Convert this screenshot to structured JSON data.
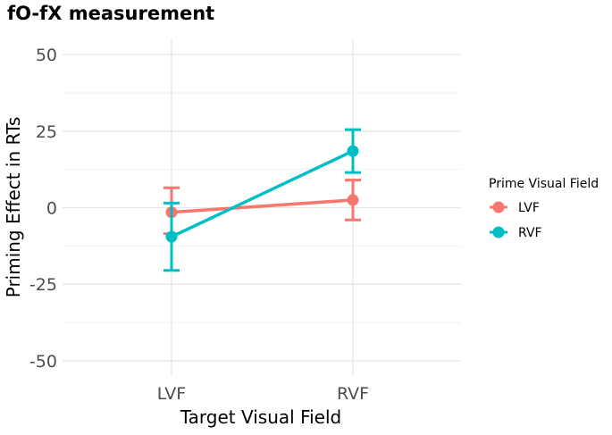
{
  "chart_data": {
    "type": "line",
    "title": "fO-fX measurement",
    "xlabel": "Target Visual Field",
    "ylabel": "Priming Effect in RTs",
    "categories": [
      "LVF",
      "RVF"
    ],
    "ylim": [
      -55,
      55
    ],
    "yticks": [
      50,
      25,
      0,
      -25,
      -50
    ],
    "ytick_labels": [
      "50",
      "25",
      "0",
      "-25",
      "-50"
    ],
    "grid": true,
    "legend": {
      "title": "Prime Visual Field",
      "position": "right"
    },
    "series": [
      {
        "name": "LVF",
        "color": "#F8766D",
        "values": [
          -1.5,
          2.5
        ],
        "lower": [
          -8.5,
          -4
        ],
        "upper": [
          6.5,
          9
        ]
      },
      {
        "name": "RVF",
        "color": "#00BFC4",
        "values": [
          -9.5,
          18.5
        ],
        "lower": [
          -20.5,
          11.5
        ],
        "upper": [
          1.5,
          25.5
        ]
      }
    ]
  }
}
